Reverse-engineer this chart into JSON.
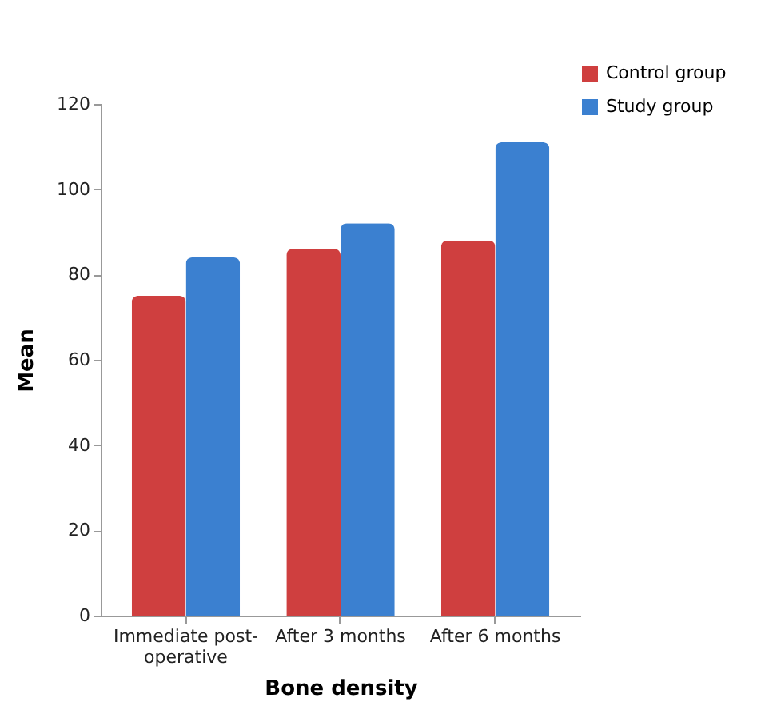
{
  "chart_data": {
    "type": "bar",
    "xlabel": "Bone density",
    "ylabel": "Mean",
    "categories": [
      "Immediate post-operative",
      "After 3 months",
      "After 6 months"
    ],
    "series": [
      {
        "name": "Control group",
        "color": "#cf3f3f",
        "values": [
          75,
          86,
          88
        ]
      },
      {
        "name": "Study group",
        "color": "#3b80d0",
        "values": [
          84,
          92,
          111
        ]
      }
    ],
    "ylim": [
      0,
      120
    ],
    "yticks": [
      0,
      20,
      40,
      60,
      80,
      100,
      120
    ],
    "legend": "top right"
  }
}
